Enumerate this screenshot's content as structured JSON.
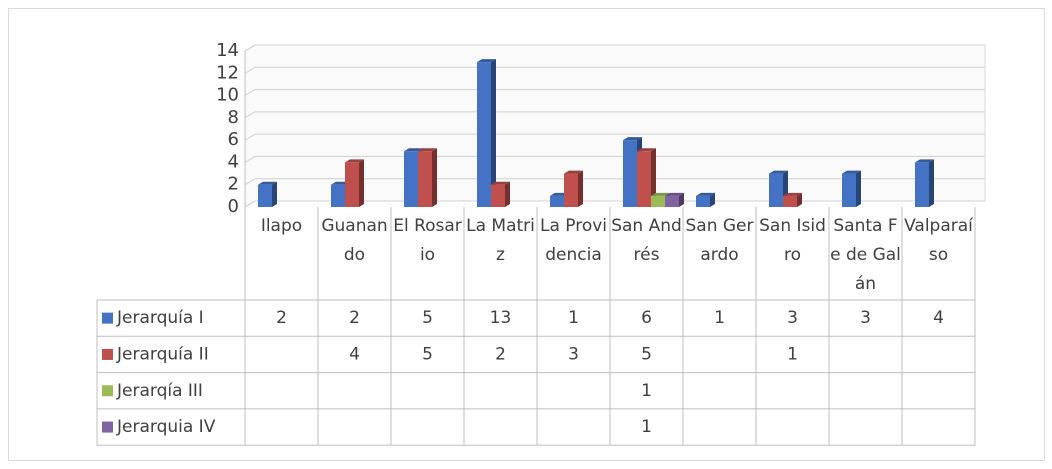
{
  "chart_data": {
    "type": "bar",
    "categories": [
      "Ilapo",
      "Guanando",
      "El Rosario",
      "La Matriz",
      "La Providencia",
      "San Andrés",
      "San Gerardo",
      "San Isidro",
      "Santa Fe de Galán",
      "Valparaíso"
    ],
    "series": [
      {
        "name": "Jerarquía I",
        "color": "#4472c4",
        "values": [
          2,
          2,
          5,
          13,
          1,
          6,
          1,
          3,
          3,
          4
        ]
      },
      {
        "name": "Jerarquía II",
        "color": "#c0504d",
        "values": [
          null,
          4,
          5,
          2,
          3,
          5,
          null,
          1,
          null,
          null
        ]
      },
      {
        "name": "Jerarqía III",
        "color": "#9bbb59",
        "values": [
          null,
          null,
          null,
          null,
          null,
          1,
          null,
          null,
          null,
          null
        ]
      },
      {
        "name": "Jerarquia IV",
        "color": "#8064a2",
        "values": [
          null,
          null,
          null,
          null,
          null,
          1,
          null,
          null,
          null,
          null
        ]
      }
    ],
    "ylim": [
      0,
      14
    ],
    "yticks": [
      0,
      2,
      4,
      6,
      8,
      10,
      12,
      14
    ],
    "grid": true,
    "data_table": true
  }
}
